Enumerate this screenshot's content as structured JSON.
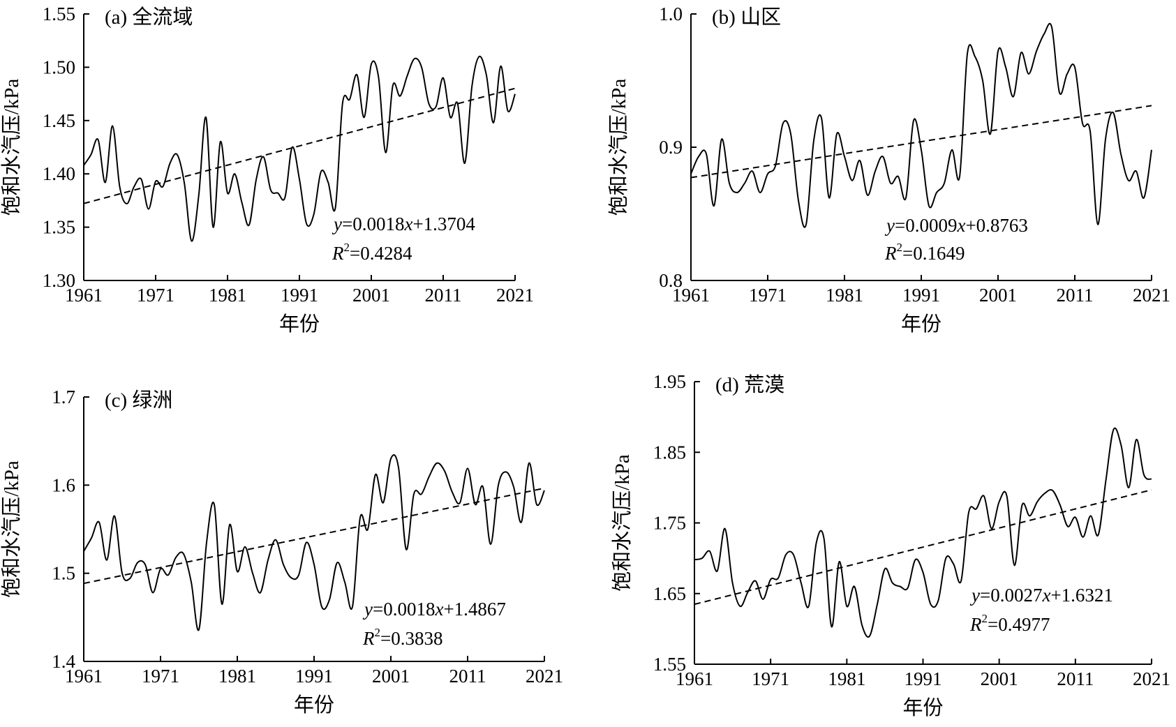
{
  "figure": {
    "chart_data": [
      {
        "id": "a",
        "type": "line",
        "panel_label": "(a) 全流域",
        "xlabel": "年份",
        "ylabel": "饱和水汽压/kPa",
        "xlim": [
          1961,
          2021
        ],
        "ylim": [
          1.3,
          1.55
        ],
        "x_ticks": [
          "1961",
          "1971",
          "1981",
          "1991",
          "2001",
          "2011",
          "2021"
        ],
        "y_ticks": [
          "1.30",
          "1.35",
          "1.40",
          "1.45",
          "1.50",
          "1.55"
        ],
        "x": [
          1961,
          1962,
          1963,
          1964,
          1965,
          1966,
          1967,
          1968,
          1969,
          1970,
          1971,
          1972,
          1973,
          1974,
          1975,
          1976,
          1977,
          1978,
          1979,
          1980,
          1981,
          1982,
          1983,
          1984,
          1985,
          1986,
          1987,
          1988,
          1989,
          1990,
          1991,
          1992,
          1993,
          1994,
          1995,
          1996,
          1997,
          1998,
          1999,
          2000,
          2001,
          2002,
          2003,
          2004,
          2005,
          2006,
          2007,
          2008,
          2009,
          2010,
          2011,
          2012,
          2013,
          2014,
          2015,
          2016,
          2017,
          2018,
          2019,
          2020,
          2021
        ],
        "values": [
          1.408,
          1.418,
          1.432,
          1.392,
          1.445,
          1.388,
          1.372,
          1.388,
          1.395,
          1.367,
          1.393,
          1.388,
          1.41,
          1.418,
          1.391,
          1.337,
          1.38,
          1.453,
          1.35,
          1.43,
          1.382,
          1.4,
          1.373,
          1.352,
          1.395,
          1.416,
          1.385,
          1.382,
          1.378,
          1.425,
          1.395,
          1.353,
          1.362,
          1.402,
          1.392,
          1.368,
          1.466,
          1.47,
          1.493,
          1.453,
          1.503,
          1.491,
          1.42,
          1.483,
          1.473,
          1.492,
          1.508,
          1.5,
          1.466,
          1.463,
          1.49,
          1.453,
          1.466,
          1.41,
          1.482,
          1.51,
          1.493,
          1.448,
          1.501,
          1.459,
          1.475
        ],
        "trend": [
          1.3722,
          1.4802
        ],
        "equation": {
          "y": "y",
          "rest": "=0.0018",
          "x": "x",
          "tail": "+1.3704"
        },
        "r2": {
          "r": "R",
          "sup": "2",
          "rest": "=0.4284"
        }
      },
      {
        "id": "b",
        "type": "line",
        "panel_label": "(b) 山区",
        "xlabel": "年份",
        "ylabel": "饱和水汽压/kPa",
        "xlim": [
          1961,
          2021
        ],
        "ylim": [
          0.8,
          1.0
        ],
        "x_ticks": [
          "1961",
          "1971",
          "1981",
          "1991",
          "2001",
          "2011",
          "2021"
        ],
        "y_ticks": [
          "0.8",
          "0.9",
          "1.0"
        ],
        "x": [
          1961,
          1962,
          1963,
          1964,
          1965,
          1966,
          1967,
          1968,
          1969,
          1970,
          1971,
          1972,
          1973,
          1974,
          1975,
          1976,
          1977,
          1978,
          1979,
          1980,
          1981,
          1982,
          1983,
          1984,
          1985,
          1986,
          1987,
          1988,
          1989,
          1990,
          1991,
          1992,
          1993,
          1994,
          1995,
          1996,
          1997,
          1998,
          1999,
          2000,
          2001,
          2002,
          2003,
          2004,
          2005,
          2006,
          2007,
          2008,
          2009,
          2010,
          2011,
          2012,
          2013,
          2014,
          2015,
          2016,
          2017,
          2018,
          2019,
          2020,
          2021
        ],
        "values": [
          0.88,
          0.893,
          0.895,
          0.856,
          0.906,
          0.873,
          0.866,
          0.873,
          0.882,
          0.866,
          0.88,
          0.886,
          0.918,
          0.91,
          0.86,
          0.842,
          0.905,
          0.922,
          0.862,
          0.91,
          0.893,
          0.875,
          0.89,
          0.864,
          0.882,
          0.893,
          0.873,
          0.878,
          0.862,
          0.92,
          0.898,
          0.856,
          0.866,
          0.873,
          0.898,
          0.878,
          0.97,
          0.968,
          0.95,
          0.91,
          0.972,
          0.96,
          0.938,
          0.971,
          0.955,
          0.972,
          0.985,
          0.99,
          0.941,
          0.955,
          0.96,
          0.918,
          0.912,
          0.842,
          0.906,
          0.926,
          0.895,
          0.875,
          0.882,
          0.862,
          0.898
        ],
        "trend": [
          0.8772,
          0.9312
        ],
        "equation": {
          "y": "y",
          "rest": "=0.0009",
          "x": "x",
          "tail": "+0.8763"
        },
        "r2": {
          "r": "R",
          "sup": "2",
          "rest": "=0.1649"
        }
      },
      {
        "id": "c",
        "type": "line",
        "panel_label": "(c) 绿洲",
        "xlabel": "年份",
        "ylabel": "饱和水汽压/kPa",
        "xlim": [
          1961,
          2021
        ],
        "ylim": [
          1.4,
          1.7
        ],
        "x_ticks": [
          "1961",
          "1971",
          "1981",
          "1991",
          "2001",
          "2011",
          "2021"
        ],
        "y_ticks": [
          "1.4",
          "1.5",
          "1.6",
          "1.7"
        ],
        "x": [
          1961,
          1962,
          1963,
          1964,
          1965,
          1966,
          1967,
          1968,
          1969,
          1970,
          1971,
          1972,
          1973,
          1974,
          1975,
          1976,
          1977,
          1978,
          1979,
          1980,
          1981,
          1982,
          1983,
          1984,
          1985,
          1986,
          1987,
          1988,
          1989,
          1990,
          1991,
          1992,
          1993,
          1994,
          1995,
          1996,
          1997,
          1998,
          1999,
          2000,
          2001,
          2002,
          2003,
          2004,
          2005,
          2006,
          2007,
          2008,
          2009,
          2010,
          2011,
          2012,
          2013,
          2014,
          2015,
          2016,
          2017,
          2018,
          2019,
          2020,
          2021
        ],
        "values": [
          1.525,
          1.54,
          1.558,
          1.515,
          1.565,
          1.5,
          1.494,
          1.512,
          1.51,
          1.478,
          1.505,
          1.498,
          1.518,
          1.522,
          1.49,
          1.436,
          1.535,
          1.578,
          1.465,
          1.555,
          1.502,
          1.53,
          1.5,
          1.478,
          1.515,
          1.538,
          1.51,
          1.495,
          1.498,
          1.535,
          1.51,
          1.462,
          1.47,
          1.512,
          1.49,
          1.462,
          1.563,
          1.55,
          1.612,
          1.58,
          1.63,
          1.62,
          1.527,
          1.59,
          1.59,
          1.61,
          1.625,
          1.616,
          1.592,
          1.58,
          1.619,
          1.578,
          1.598,
          1.533,
          1.6,
          1.615,
          1.598,
          1.558,
          1.625,
          1.578,
          1.594
        ],
        "trend": [
          1.4885,
          1.5965
        ],
        "equation": {
          "y": "y",
          "rest": "=0.0018",
          "x": "x",
          "tail": "+1.4867"
        },
        "r2": {
          "r": "R",
          "sup": "2",
          "rest": "=0.3838"
        }
      },
      {
        "id": "d",
        "type": "line",
        "panel_label": "(d) 荒漠",
        "xlabel": "年份",
        "ylabel": "饱和水汽压/kPa",
        "xlim": [
          1961,
          2021
        ],
        "ylim": [
          1.55,
          1.95
        ],
        "x_ticks": [
          "1961",
          "1971",
          "1981",
          "1991",
          "2001",
          "2011",
          "2021"
        ],
        "y_ticks": [
          "1.55",
          "1.65",
          "1.75",
          "1.85",
          "1.95"
        ],
        "x": [
          1961,
          1962,
          1963,
          1964,
          1965,
          1966,
          1967,
          1968,
          1969,
          1970,
          1971,
          1972,
          1973,
          1974,
          1975,
          1976,
          1977,
          1978,
          1979,
          1980,
          1981,
          1982,
          1983,
          1984,
          1985,
          1986,
          1987,
          1988,
          1989,
          1990,
          1991,
          1992,
          1993,
          1994,
          1995,
          1996,
          1997,
          1998,
          1999,
          2000,
          2001,
          2002,
          2003,
          2004,
          2005,
          2006,
          2007,
          2008,
          2009,
          2010,
          2011,
          2012,
          2013,
          2014,
          2015,
          2016,
          2017,
          2018,
          2019,
          2020,
          2021
        ],
        "values": [
          1.698,
          1.7,
          1.71,
          1.682,
          1.742,
          1.665,
          1.632,
          1.652,
          1.668,
          1.642,
          1.67,
          1.672,
          1.705,
          1.705,
          1.665,
          1.632,
          1.722,
          1.728,
          1.603,
          1.695,
          1.632,
          1.66,
          1.605,
          1.59,
          1.635,
          1.685,
          1.665,
          1.66,
          1.658,
          1.698,
          1.68,
          1.635,
          1.64,
          1.7,
          1.692,
          1.668,
          1.765,
          1.77,
          1.788,
          1.742,
          1.78,
          1.788,
          1.69,
          1.775,
          1.76,
          1.78,
          1.792,
          1.796,
          1.775,
          1.745,
          1.758,
          1.73,
          1.76,
          1.733,
          1.81,
          1.882,
          1.86,
          1.8,
          1.868,
          1.818,
          1.812
        ],
        "trend": [
          1.6348,
          1.7968
        ],
        "equation": {
          "y": "y",
          "rest": "=0.0027",
          "x": "x",
          "tail": "+1.6321"
        },
        "r2": {
          "r": "R",
          "sup": "2",
          "rest": "=0.4977"
        }
      }
    ]
  }
}
